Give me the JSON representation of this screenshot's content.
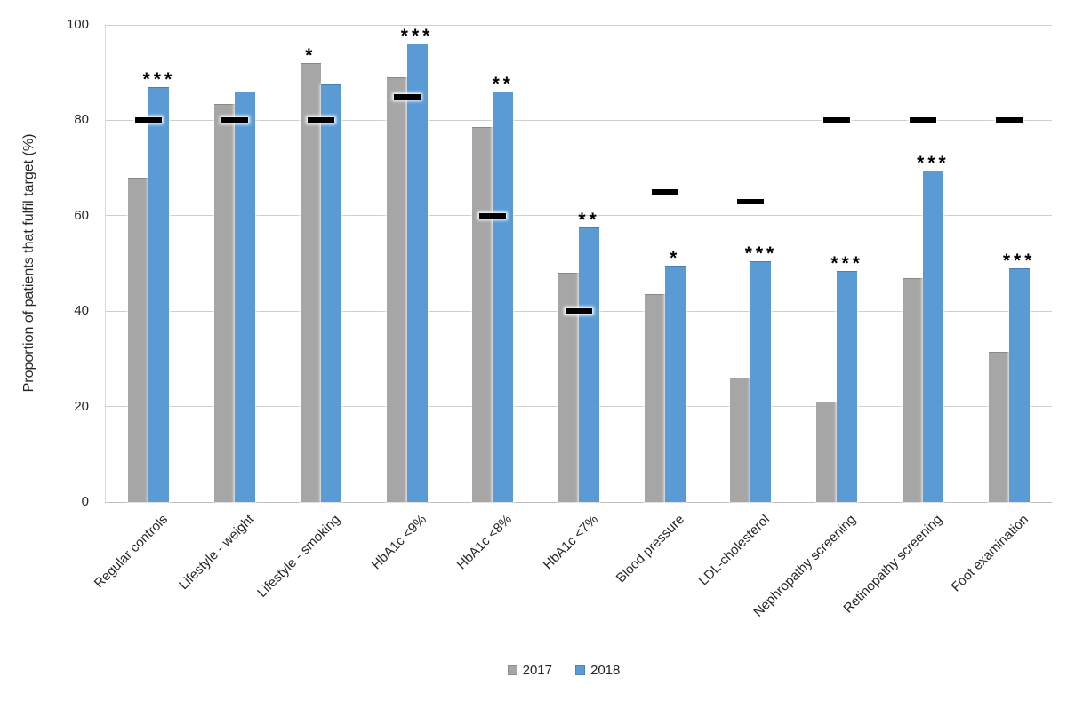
{
  "chart_data": {
    "type": "bar",
    "title": "",
    "ylabel": "Proportion of patients that fulfil target (%)",
    "xlabel": "",
    "ylim": [
      0,
      100
    ],
    "yticks": [
      0,
      20,
      40,
      60,
      80,
      100
    ],
    "grid": "horizontal",
    "legend_position": "bottom-center",
    "categories": [
      "Regular controls",
      "Lifestyle - weight",
      "Lifestyle - smoking",
      "HbA1c <9%",
      "HbA1c <8%",
      "HbA1c <7%",
      "Blood pressure",
      "LDL-cholesterol",
      "Nephropathy screening",
      "Retinopathy screening",
      "Foot examination"
    ],
    "series": [
      {
        "name": "2017",
        "color": "#a6a6a6",
        "values": [
          68,
          83.5,
          92,
          89,
          78.5,
          48,
          43.5,
          26,
          21,
          47,
          31.5
        ]
      },
      {
        "name": "2018",
        "color": "#5b9bd5",
        "values": [
          87,
          86,
          87.5,
          96,
          86,
          57.5,
          49.5,
          50.5,
          48.5,
          69.5,
          49
        ]
      }
    ],
    "target_markers": {
      "shape": "black-dash",
      "color": "#000000",
      "values": [
        80,
        80,
        80,
        85,
        60,
        40,
        65,
        63,
        80,
        80,
        80
      ]
    },
    "significance": [
      {
        "stars": "***",
        "above_series": "2018"
      },
      null,
      {
        "stars": "*",
        "above_series": "2017"
      },
      {
        "stars": "***",
        "above_series": "2018"
      },
      {
        "stars": "**",
        "above_series": "2018"
      },
      {
        "stars": "**",
        "above_series": "2018"
      },
      {
        "stars": "*",
        "above_series": "2018"
      },
      {
        "stars": "***",
        "above_series": "2018"
      },
      {
        "stars": "***",
        "above_series": "2018"
      },
      {
        "stars": "***",
        "above_series": "2018"
      },
      {
        "stars": "***",
        "above_series": "2018"
      }
    ]
  }
}
